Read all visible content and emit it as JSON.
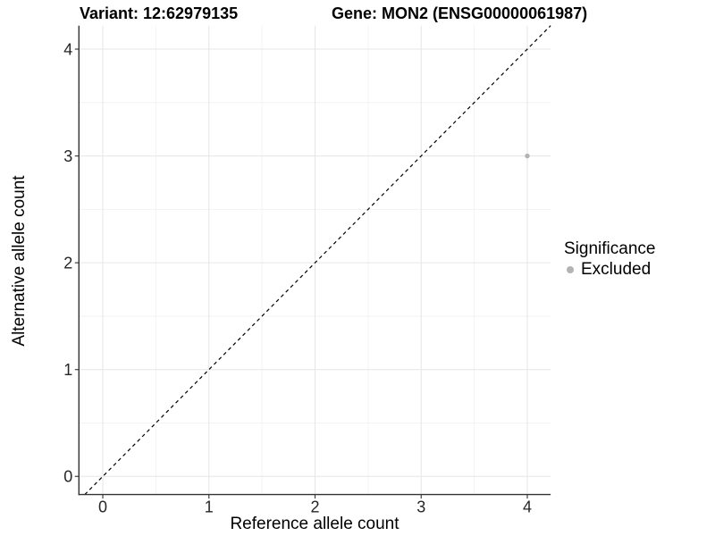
{
  "chart_data": {
    "type": "scatter",
    "title_left": "Variant: 12:62979135",
    "title_right": "Gene: MON2 (ENSG00000061987)",
    "xlabel": "Reference allele count",
    "ylabel": "Alternative allele count",
    "legend_title": "Significance",
    "legend_position": "right",
    "xlim": [
      -0.225,
      4.22
    ],
    "ylim": [
      -0.17,
      4.22
    ],
    "x_ticks": [
      0,
      1,
      2,
      3,
      4
    ],
    "y_ticks": [
      0,
      1,
      2,
      3,
      4
    ],
    "x_minor_ticks": [
      0.5,
      1.5,
      2.5,
      3.5
    ],
    "y_minor_ticks": [
      0.5,
      1.5,
      2.5,
      3.5
    ],
    "grid": true,
    "series": [
      {
        "name": "Excluded",
        "color": "#b3b3b3",
        "points": [
          {
            "x": 4,
            "y": 3
          }
        ]
      }
    ],
    "reference_line": {
      "kind": "identity",
      "slope": 1,
      "intercept": 0,
      "style": "dashed",
      "color": "#000000"
    }
  },
  "style": {
    "background": "#ffffff",
    "grid_major_color": "#e6e6e6",
    "grid_minor_color": "#f3f3f3",
    "axis_line_color": "#333333",
    "tick_mark_color": "#404040",
    "tick_label_color": "#262626",
    "point_color": "#b3b3b3"
  }
}
